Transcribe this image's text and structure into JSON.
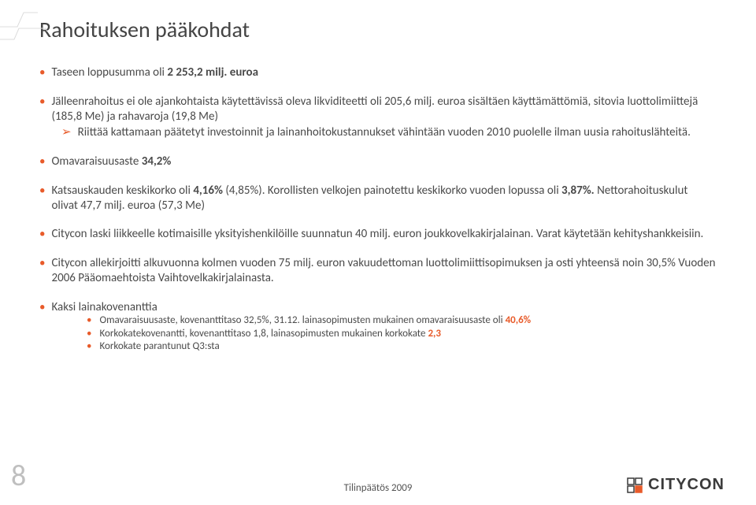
{
  "title": "Rahoituksen pääkohdat",
  "bullets": [
    {
      "segments": [
        {
          "text": "Taseen loppusumma oli ",
          "bold": false
        },
        {
          "text": "2 253,2 milj. euroa",
          "bold": true
        }
      ]
    },
    {
      "segments": [
        {
          "text": "Jälleenrahoitus ei ole ajankohtaista käytettävissä oleva likviditeetti oli 205,6 milj. euroa sisältäen käyttämättömiä, sitovia luottolimiittejä (185,8 Me) ja rahavaroja (19,8 Me)",
          "bold": false
        }
      ],
      "sub": {
        "segments": [
          {
            "text": "Riittää kattamaan päätetyt investoinnit ja lainanhoitokustannukset vähintään vuoden 2010 puolelle ilman uusia rahoituslähteitä.",
            "bold": false
          }
        ]
      }
    },
    {
      "segments": [
        {
          "text": "Omavaraisuusaste ",
          "bold": false
        },
        {
          "text": "34,2%",
          "bold": true
        }
      ]
    },
    {
      "segments": [
        {
          "text": "Katsauskauden keskikorko oli ",
          "bold": false
        },
        {
          "text": "4,16% ",
          "bold": true
        },
        {
          "text": "(4,85%). Korollisten velkojen painotettu keskikorko vuoden lopussa oli ",
          "bold": false
        },
        {
          "text": "3,87%. ",
          "bold": true
        },
        {
          "text": "Nettorahoituskulut olivat 47,7 milj. euroa (57,3 Me)",
          "bold": false
        }
      ]
    },
    {
      "segments": [
        {
          "text": "Citycon laski liikkeelle kotimaisille yksityishenkilöille suunnatun 40 milj. euron joukkovelkakirjalainan. Varat käytetään kehityshankkeisiin.",
          "bold": false
        }
      ]
    },
    {
      "segments": [
        {
          "text": "Citycon allekirjoitti alkuvuonna kolmen vuoden 75 milj. euron vakuudettoman luottolimiittisopimuksen ja osti yhteensä noin 30,5% Vuoden 2006 Pääomaehtoista Vaihtovelkakirjalainasta.",
          "bold": false
        }
      ]
    },
    {
      "segments": [
        {
          "text": "Kaksi lainakovenanttia",
          "bold": false
        }
      ],
      "subpoints": [
        {
          "segments": [
            {
              "text": "Omavaraisuusaste, kovenanttitaso 32,5%, 31.12. lainasopimusten mukainen omavaraisuusaste oli ",
              "bold": false
            },
            {
              "text": "40,6%",
              "bold": true,
              "orange": true
            }
          ]
        },
        {
          "segments": [
            {
              "text": "Korkokatekovenantti, kovenanttitaso 1,8, lainasopimusten mukainen korkokate ",
              "bold": false
            },
            {
              "text": "2,3",
              "bold": true,
              "orange": true
            }
          ]
        },
        {
          "segments": [
            {
              "text": "Korkokate parantunut Q3:sta",
              "bold": false
            }
          ]
        }
      ]
    }
  ],
  "footer": "Tilinpäätös 2009",
  "pageNumber": "8",
  "logoText": "CITYCON",
  "colors": {
    "accent": "#e85b2a",
    "text": "#4a4a4a",
    "muted": "#bfbfbf"
  }
}
